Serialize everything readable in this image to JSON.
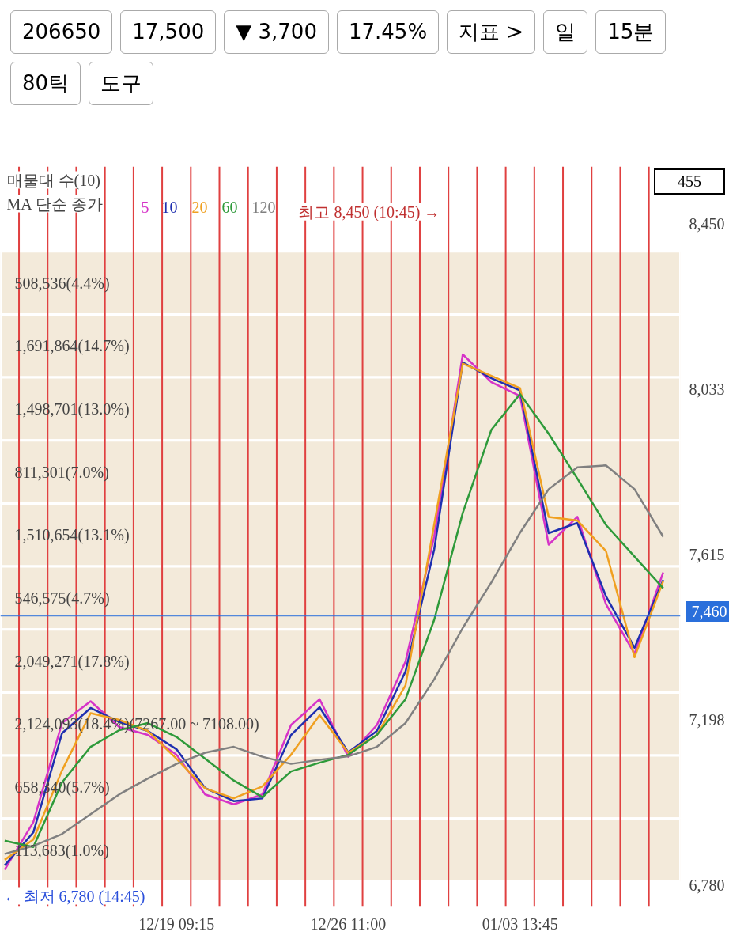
{
  "chart_data": {
    "type": "line",
    "subtitle": "매물대 수(10)",
    "legend_title": "MA 단순 종가",
    "legend": "top left",
    "grid": false,
    "ylim": [
      6728,
      8594
    ],
    "categories": [
      null,
      null,
      null,
      null,
      null,
      null,
      "12/19 09:15",
      null,
      null,
      null,
      null,
      null,
      "12/26 11:00",
      null,
      null,
      null,
      null,
      null,
      "01/03 13:45",
      null,
      null,
      null,
      null,
      null
    ],
    "yticks": [
      {
        "value": 6780,
        "label": "6,780"
      },
      {
        "value": 7198,
        "label": "7,198"
      },
      {
        "value": 7615,
        "label": "7,615"
      },
      {
        "value": 8033,
        "label": "8,033"
      },
      {
        "value": 8450,
        "label": "8,450"
      }
    ],
    "series": [
      {
        "name": "5",
        "color": "#d633c8",
        "values": [
          6820,
          6940,
          7190,
          7245,
          7180,
          7160,
          7110,
          7010,
          6985,
          7010,
          7185,
          7250,
          7105,
          7185,
          7345,
          7660,
          8120,
          8050,
          8015,
          7640,
          7710,
          7490,
          7365,
          7570
        ]
      },
      {
        "name": "10",
        "color": "#1f2fb0",
        "values": [
          6831,
          6914,
          7164,
          7228,
          7193,
          7170,
          7124,
          7026,
          6993,
          7000,
          7160,
          7230,
          7116,
          7170,
          7320,
          7627,
          8100,
          8060,
          8029,
          7669,
          7695,
          7510,
          7380,
          7551
        ]
      },
      {
        "name": "20",
        "color": "#f0a020",
        "values": [
          6845,
          6896,
          7070,
          7215,
          7198,
          7170,
          7100,
          7025,
          7000,
          7030,
          7110,
          7210,
          7115,
          7160,
          7285,
          7690,
          8097,
          8066,
          8035,
          7710,
          7701,
          7624,
          7356,
          7548
        ]
      },
      {
        "name": "60",
        "color": "#2e9a3a",
        "values": [
          6893,
          6877,
          7040,
          7130,
          7172,
          7190,
          7155,
          7100,
          7045,
          7003,
          7068,
          7090,
          7110,
          7160,
          7250,
          7450,
          7720,
          7930,
          8020,
          7920,
          7807,
          7690,
          7610,
          7530
        ]
      },
      {
        "name": "120",
        "color": "#808080",
        "values": [
          6860,
          6880,
          6910,
          6960,
          7010,
          7050,
          7087,
          7115,
          7130,
          7105,
          7087,
          7097,
          7106,
          7130,
          7190,
          7300,
          7430,
          7545,
          7670,
          7780,
          7835,
          7840,
          7780,
          7660
        ]
      }
    ],
    "bands": [
      {
        "axis": "y",
        "from": 8221,
        "to": 8380,
        "label": "508,536(4.4%)",
        "color": "#f1e6d4"
      },
      {
        "axis": "y",
        "from": 8062,
        "to": 8221,
        "label": "1,691,864(14.7%)",
        "color": "#f1e6d4"
      },
      {
        "axis": "y",
        "from": 7903,
        "to": 8062,
        "label": "1,498,701(13.0%)",
        "color": "#f1e6d4"
      },
      {
        "axis": "y",
        "from": 7744,
        "to": 7903,
        "label": "811,301(7.0%)",
        "color": "#f1e6d4"
      },
      {
        "axis": "y",
        "from": 7585,
        "to": 7744,
        "label": "1,510,654(13.1%)",
        "color": "#f1e6d4"
      },
      {
        "axis": "y",
        "from": 7426,
        "to": 7585,
        "label": "546,575(4.7%)",
        "color": "#f1e6d4"
      },
      {
        "axis": "y",
        "from": 7267,
        "to": 7426,
        "label": "2,049,271(17.8%)",
        "color": "#f1e6d4"
      },
      {
        "axis": "y",
        "from": 7108,
        "to": 7267,
        "label": "2,124,093(18.4%)(7267.00 ~ 7108.00)",
        "color": "#f1e6d4"
      },
      {
        "axis": "y",
        "from": 6949,
        "to": 7108,
        "label": "658,340(5.7%)",
        "color": "#f1e6d4"
      },
      {
        "axis": "y",
        "from": 6790,
        "to": 6949,
        "label": "113,683(1.0%)",
        "color": "#f1e6d4"
      }
    ],
    "ref_lines": [
      {
        "axis": "y",
        "value": 7460,
        "label": "7,460",
        "color": "#2a6fdb"
      }
    ],
    "annotations": [
      "455",
      "최고 8,450 (10:45) →",
      "← 최저 6,780 (14:45)",
      "206650",
      "17,500",
      "▼ 3,700",
      "17.45%",
      "지표 >",
      "일",
      "15분",
      "80틱",
      "도구"
    ]
  }
}
